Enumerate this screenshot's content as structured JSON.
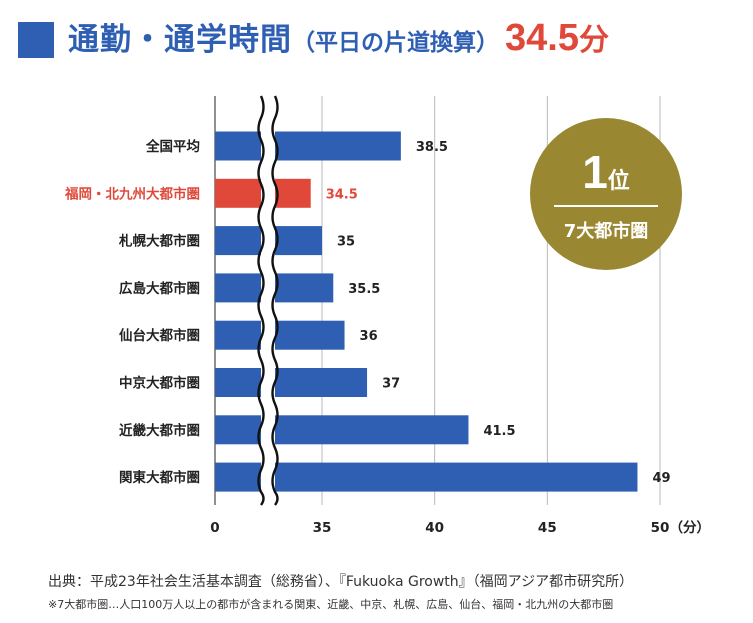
{
  "header": {
    "title_main": "通勤・通学時間",
    "title_sub": "（平日の片道換算）",
    "title_value": "34.5",
    "title_unit": "分"
  },
  "badge": {
    "rank_number": "1",
    "rank_suffix": "位",
    "subtitle": "7大都市圏"
  },
  "chart_data": {
    "type": "bar",
    "orientation": "horizontal",
    "categories": [
      "全国平均",
      "福岡・北九州大都市圏",
      "札幌大都市圏",
      "広島大都市圏",
      "仙台大都市圏",
      "中京大都市圏",
      "近畿大都市圏",
      "関東大都市圏"
    ],
    "values": [
      38.5,
      34.5,
      35,
      35.5,
      36,
      37,
      41.5,
      49
    ],
    "value_labels": [
      "38.5",
      "34.5",
      "35",
      "35.5",
      "36",
      "37",
      "41.5",
      "49"
    ],
    "highlight_category": "福岡・北九州大都市圏",
    "x_ticks": [
      "0",
      "35",
      "40",
      "45",
      "50"
    ],
    "x_unit": "（分）",
    "axis_break": true,
    "colors": {
      "bar": "#2f5fb3",
      "highlight": "#e0493a",
      "highlight_label": "#e0493a",
      "label": "#222222",
      "grid": "#b8b8b8"
    }
  },
  "footer": {
    "source": "出典：平成23年社会生活基本調査（総務省）、『Fukuoka Growth』（福岡アジア都市研究所）",
    "note": "※7大都市圏…人口100万人以上の都市が含まれる関東、近畿、中京、札幌、広島、仙台、福岡・北九州の大都市圏"
  }
}
